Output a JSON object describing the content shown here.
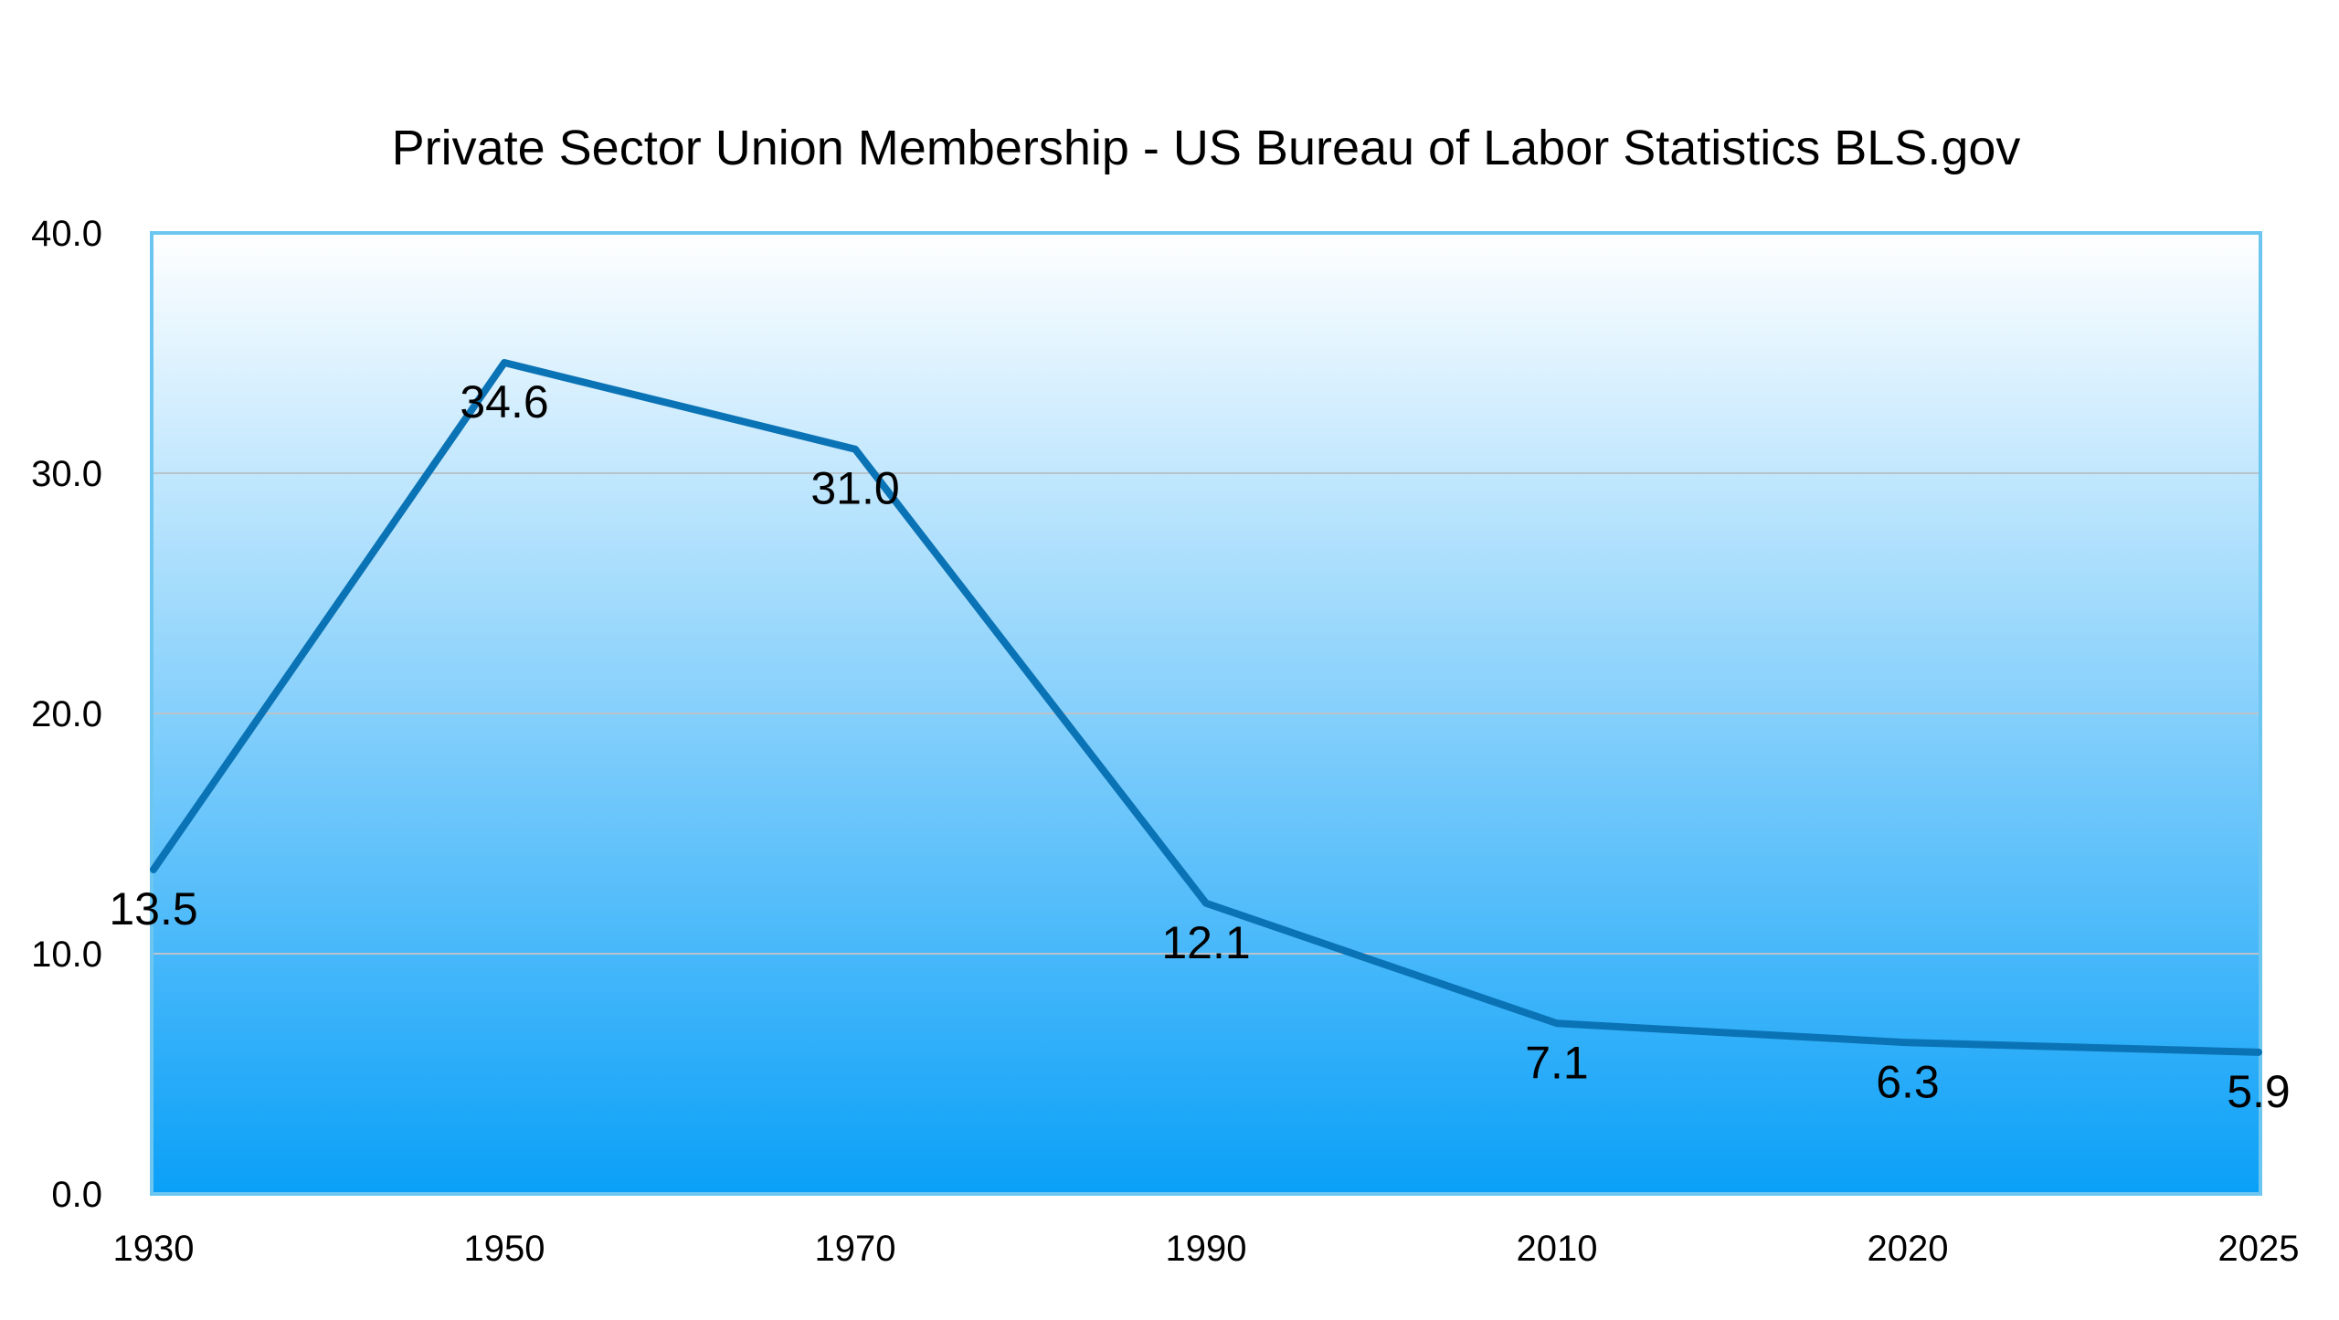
{
  "chart_data": {
    "type": "line",
    "title": "Private Sector Union Membership - US Bureau of Labor Statistics BLS.gov",
    "xlabel": "",
    "ylabel": "",
    "categories": [
      "1930",
      "1950",
      "1970",
      "1990",
      "2010",
      "2020",
      "2025"
    ],
    "series": [
      {
        "values": [
          13.5,
          34.6,
          31.0,
          12.1,
          7.1,
          6.3,
          5.9
        ],
        "labels": [
          "13.5",
          "34.6",
          "31.0",
          "12.1",
          "7.1",
          "6.3",
          "5.9"
        ]
      }
    ],
    "y_ticks": [
      "0.0",
      "10.0",
      "20.0",
      "30.0",
      "40.0"
    ],
    "ylim": [
      0,
      40
    ],
    "grid": true,
    "legend": "none"
  },
  "colors": {
    "line": "#0a73b5",
    "plot_border": "#6cc6f0",
    "gradient_top": "#ffffff",
    "gradient_bottom": "#0aa0f8",
    "gridline": "#b9c3cc",
    "text": "#000000"
  }
}
